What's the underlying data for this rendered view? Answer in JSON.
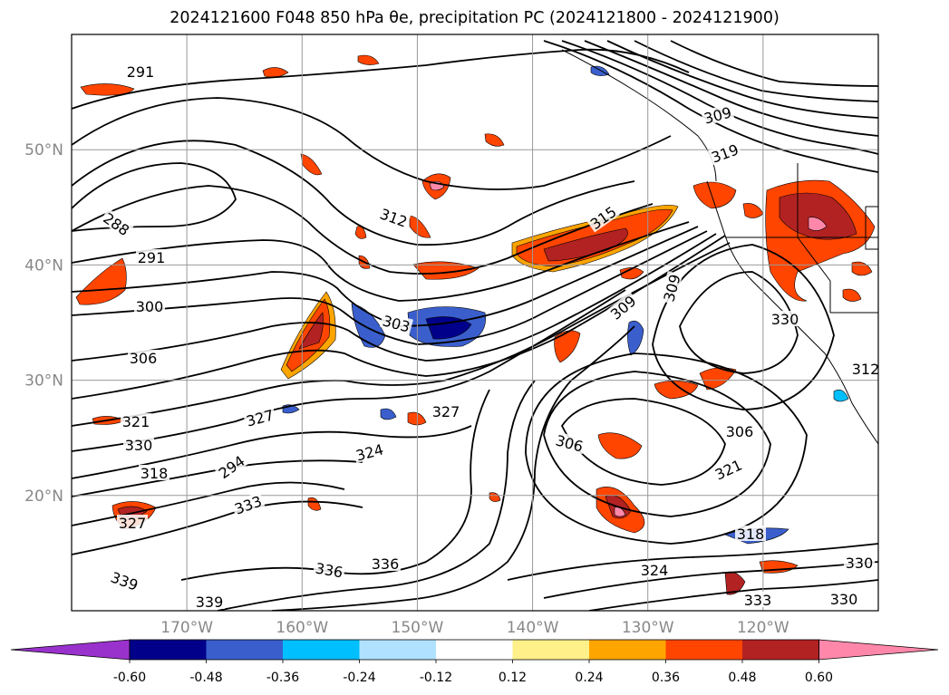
{
  "title": "2024121600 F048 850 hPa θe, precipitation PC (2024121800 - 2024121900)",
  "map": {
    "lat_range": [
      10,
      60
    ],
    "lon_range": [
      -180,
      -110
    ],
    "lat_ticks": [
      {
        "value": 20,
        "label": "20°N"
      },
      {
        "value": 30,
        "label": "30°N"
      },
      {
        "value": 40,
        "label": "40°N"
      },
      {
        "value": 50,
        "label": "50°N"
      }
    ],
    "lon_ticks": [
      {
        "value": -170,
        "label": "170°W"
      },
      {
        "value": -160,
        "label": "160°W"
      },
      {
        "value": -150,
        "label": "150°W"
      },
      {
        "value": -140,
        "label": "140°W"
      },
      {
        "value": -130,
        "label": "130°W"
      },
      {
        "value": -120,
        "label": "120°W"
      }
    ],
    "grid": true,
    "contour_color": "#000000",
    "contour_labels": [
      "291",
      "288",
      "291",
      "300",
      "306",
      "321",
      "330",
      "318",
      "327",
      "294",
      "312",
      "303",
      "315",
      "309",
      "309",
      "306",
      "306",
      "321",
      "327",
      "324",
      "333",
      "336",
      "336",
      "339",
      "339",
      "324",
      "318",
      "330",
      "333",
      "330",
      "330",
      "309",
      "319",
      "312",
      "327"
    ]
  },
  "colorbar": {
    "levels": [
      "-0.60",
      "-0.48",
      "-0.36",
      "-0.24",
      "-0.12",
      "0.12",
      "0.24",
      "0.36",
      "0.48",
      "0.60"
    ],
    "colors": [
      "#9932cc",
      "#00008b",
      "#3a5fcd",
      "#00bfff",
      "#b0e2ff",
      "#ffffff",
      "#fff08a",
      "#ffa500",
      "#ff4500",
      "#b22222",
      "#ff88aa"
    ]
  }
}
